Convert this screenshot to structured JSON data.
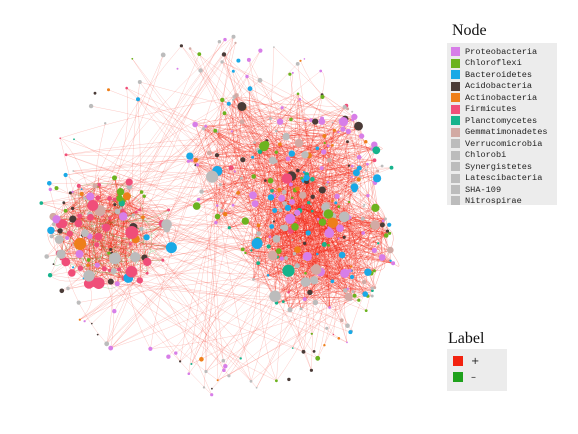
{
  "node_legend": {
    "title": "Node",
    "items": [
      {
        "label": "Proteobacteria",
        "color": "#d77ee8"
      },
      {
        "label": "Chloroflexi",
        "color": "#6cb31f"
      },
      {
        "label": "Bacteroidetes",
        "color": "#1aa9e6"
      },
      {
        "label": "Acidobacteria",
        "color": "#4a3b37"
      },
      {
        "label": "Actinobacteria",
        "color": "#ee7f1a"
      },
      {
        "label": "Firmicutes",
        "color": "#f04e79"
      },
      {
        "label": "Planctomycetes",
        "color": "#17b38c"
      },
      {
        "label": "Gemmatimonadetes",
        "color": "#d2aaa4"
      },
      {
        "label": "Verrucomicrobia",
        "color": "#bcbcbc"
      },
      {
        "label": "Chlorobi",
        "color": "#bcbcbc"
      },
      {
        "label": "Synergistetes",
        "color": "#bcbcbc"
      },
      {
        "label": "Latescibacteria",
        "color": "#bcbcbc"
      },
      {
        "label": "SHA-109",
        "color": "#bcbcbc"
      },
      {
        "label": "Nitrospirae",
        "color": "#bcbcbc"
      }
    ]
  },
  "edge_legend": {
    "title": "Label",
    "items": [
      {
        "label": "+",
        "color": "#f2220f"
      },
      {
        "label": "–",
        "color": "#1fa11c"
      }
    ]
  }
}
